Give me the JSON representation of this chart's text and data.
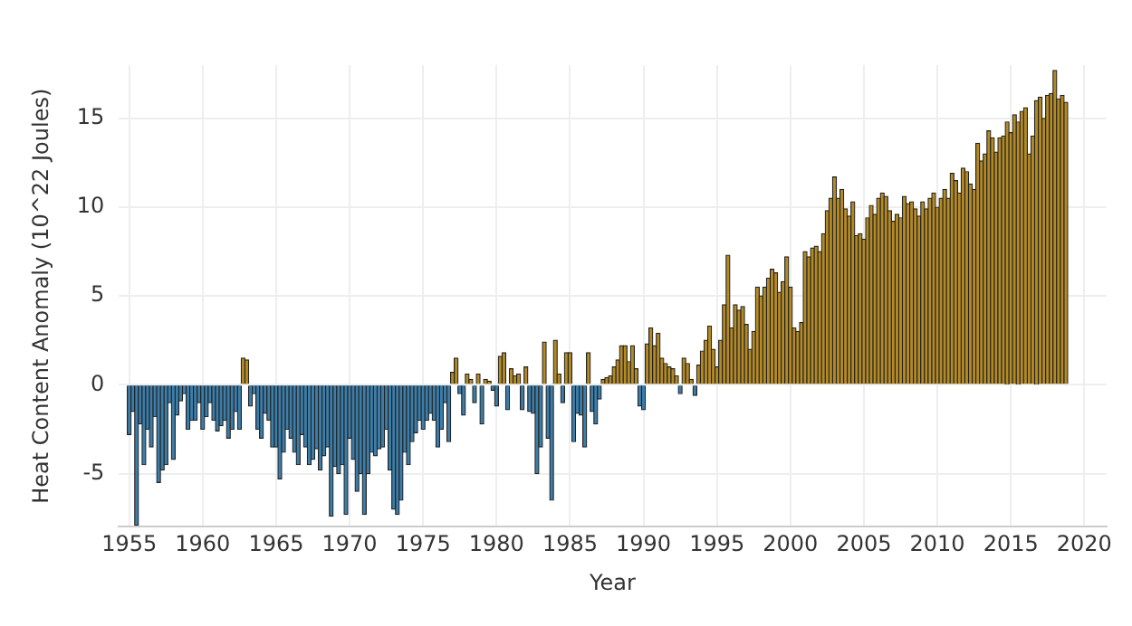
{
  "chart_data": {
    "type": "bar",
    "xlabel": "Year",
    "ylabel": "Heat Content Anomaly (10^22 Joules)",
    "xlim": [
      1954.3,
      2021.5
    ],
    "ylim": [
      -8,
      18
    ],
    "xticks": [
      1955,
      1960,
      1965,
      1970,
      1975,
      1980,
      1985,
      1990,
      1995,
      2000,
      2005,
      2010,
      2015,
      2020
    ],
    "yticks": [
      -5,
      0,
      5,
      10,
      15
    ],
    "grid": true,
    "legend": false,
    "x": [
      1955,
      1955.25,
      1955.5,
      1955.75,
      1956,
      1956.25,
      1956.5,
      1956.75,
      1957,
      1957.25,
      1957.5,
      1957.75,
      1958,
      1958.25,
      1958.5,
      1958.75,
      1959,
      1959.25,
      1959.5,
      1959.75,
      1960,
      1960.25,
      1960.5,
      1960.75,
      1961,
      1961.25,
      1961.5,
      1961.75,
      1962,
      1962.25,
      1962.5,
      1962.75,
      1963,
      1963.25,
      1963.5,
      1963.75,
      1964,
      1964.25,
      1964.5,
      1964.75,
      1965,
      1965.25,
      1965.5,
      1965.75,
      1966,
      1966.25,
      1966.5,
      1966.75,
      1967,
      1967.25,
      1967.5,
      1967.75,
      1968,
      1968.25,
      1968.5,
      1968.75,
      1969,
      1969.25,
      1969.5,
      1969.75,
      1970,
      1970.25,
      1970.5,
      1970.75,
      1971,
      1971.25,
      1971.5,
      1971.75,
      1972,
      1972.25,
      1972.5,
      1972.75,
      1973,
      1973.25,
      1973.5,
      1973.75,
      1974,
      1974.25,
      1974.5,
      1974.75,
      1975,
      1975.25,
      1975.5,
      1975.75,
      1976,
      1976.25,
      1976.5,
      1976.75,
      1977,
      1977.25,
      1977.5,
      1977.75,
      1978,
      1978.25,
      1978.5,
      1978.75,
      1979,
      1979.25,
      1979.5,
      1979.75,
      1980,
      1980.25,
      1980.5,
      1980.75,
      1981,
      1981.25,
      1981.5,
      1981.75,
      1982,
      1982.25,
      1982.5,
      1982.75,
      1983,
      1983.25,
      1983.5,
      1983.75,
      1984,
      1984.25,
      1984.5,
      1984.75,
      1985,
      1985.25,
      1985.5,
      1985.75,
      1986,
      1986.25,
      1986.5,
      1986.75,
      1987,
      1987.25,
      1987.5,
      1987.75,
      1988,
      1988.25,
      1988.5,
      1988.75,
      1989,
      1989.25,
      1989.5,
      1989.75,
      1990,
      1990.25,
      1990.5,
      1990.75,
      1991,
      1991.25,
      1991.5,
      1991.75,
      1992,
      1992.25,
      1992.5,
      1992.75,
      1993,
      1993.25,
      1993.5,
      1993.75,
      1994,
      1994.25,
      1994.5,
      1994.75,
      1995,
      1995.25,
      1995.5,
      1995.75,
      1996,
      1996.25,
      1996.5,
      1996.75,
      1997,
      1997.25,
      1997.5,
      1997.75,
      1998,
      1998.25,
      1998.5,
      1998.75,
      1999,
      1999.25,
      1999.5,
      1999.75,
      2000,
      2000.25,
      2000.5,
      2000.75,
      2001,
      2001.25,
      2001.5,
      2001.75,
      2002,
      2002.25,
      2002.5,
      2002.75,
      2003,
      2003.25,
      2003.5,
      2003.75,
      2004,
      2004.25,
      2004.5,
      2004.75,
      2005,
      2005.25,
      2005.5,
      2005.75,
      2006,
      2006.25,
      2006.5,
      2006.75,
      2007,
      2007.25,
      2007.5,
      2007.75,
      2008,
      2008.25,
      2008.5,
      2008.75,
      2009,
      2009.25,
      2009.5,
      2009.75,
      2010,
      2010.25,
      2010.5,
      2010.75,
      2011,
      2011.25,
      2011.5,
      2011.75,
      2012,
      2012.25,
      2012.5,
      2012.75,
      2013,
      2013.25,
      2013.5,
      2013.75,
      2014,
      2014.25,
      2014.5,
      2014.75,
      2015,
      2015.25,
      2015.5,
      2015.75,
      2016,
      2016.25,
      2016.5,
      2016.75,
      2017,
      2017.25,
      2017.5,
      2017.75,
      2018,
      2018.25,
      2018.5,
      2018.75
    ],
    "values": [
      -2.8,
      -1.5,
      -7.9,
      -2.2,
      -4.5,
      -2.5,
      -3.5,
      -1.8,
      -5.5,
      -4.8,
      -4.5,
      -1.0,
      -4.2,
      -1.7,
      -0.9,
      -0.5,
      -2.5,
      -2.0,
      -2.0,
      -1.0,
      -2.5,
      -1.8,
      -1.0,
      -2.0,
      -2.6,
      -2.3,
      -2.0,
      -3.0,
      -2.5,
      -1.5,
      -2.5,
      1.5,
      1.4,
      -1.2,
      -0.5,
      -2.5,
      -3.0,
      -1.6,
      -2.0,
      -3.5,
      -3.5,
      -5.3,
      -3.8,
      -2.5,
      -3.0,
      -3.8,
      -4.5,
      -2.8,
      -3.5,
      -4.5,
      -4.2,
      -3.6,
      -4.8,
      -4.0,
      -3.5,
      -7.4,
      -4.6,
      -5.0,
      -4.5,
      -7.3,
      -3.0,
      -4.2,
      -6.0,
      -5.0,
      -7.3,
      -5.0,
      -3.8,
      -4.0,
      -3.6,
      -3.5,
      -2.5,
      -4.8,
      -7.0,
      -7.3,
      -6.5,
      -3.8,
      -4.5,
      -3.2,
      -2.7,
      -2.0,
      -2.5,
      -2.0,
      -1.6,
      -2.0,
      -3.5,
      -2.5,
      -1.0,
      -3.2,
      0.7,
      1.5,
      -0.5,
      -1.7,
      0.6,
      0.3,
      -1.0,
      0.6,
      -2.2,
      0.3,
      0.2,
      -0.3,
      -1.2,
      1.6,
      1.8,
      -1.4,
      0.9,
      0.5,
      0.6,
      -1.4,
      1.0,
      -1.5,
      -1.6,
      -5.0,
      -3.5,
      2.4,
      -3.0,
      -6.5,
      2.5,
      0.6,
      -1.0,
      1.8,
      1.8,
      -3.2,
      -1.6,
      -1.7,
      -3.5,
      1.8,
      -1.5,
      -2.2,
      -0.8,
      0.3,
      0.4,
      0.5,
      1.0,
      1.4,
      2.2,
      2.2,
      1.3,
      2.2,
      0.9,
      -1.2,
      -1.4,
      2.3,
      3.2,
      2.2,
      2.9,
      1.5,
      1.2,
      1.0,
      0.9,
      0.5,
      -0.5,
      1.5,
      1.2,
      0.3,
      -0.6,
      1.1,
      1.9,
      2.5,
      3.3,
      2.0,
      1.0,
      2.5,
      4.5,
      7.3,
      3.2,
      4.5,
      4.2,
      4.4,
      3.4,
      2.0,
      3.0,
      5.5,
      5.0,
      5.5,
      6.0,
      6.5,
      6.3,
      5.2,
      5.8,
      7.2,
      5.5,
      3.2,
      3.0,
      3.5,
      7.5,
      7.2,
      7.7,
      7.8,
      7.5,
      8.5,
      9.8,
      10.5,
      11.7,
      10.5,
      11.0,
      9.9,
      9.5,
      10.3,
      8.4,
      8.5,
      8.2,
      9.4,
      10.1,
      9.6,
      10.5,
      10.8,
      10.6,
      9.8,
      9.2,
      9.6,
      9.4,
      10.6,
      10.2,
      10.3,
      9.9,
      9.5,
      10.3,
      9.9,
      10.5,
      10.8,
      10.0,
      10.5,
      11.0,
      10.5,
      11.9,
      11.5,
      10.8,
      12.2,
      12.0,
      11.3,
      11.0,
      13.6,
      12.6,
      13.0,
      14.3,
      13.9,
      13.1,
      13.9,
      14.0,
      14.8,
      14.2,
      15.2,
      14.8,
      15.4,
      15.6,
      13.0,
      14.0,
      16.0,
      16.2,
      15.0,
      16.3,
      16.4,
      17.7,
      16.1,
      16.3,
      15.9
    ],
    "colors": [
      "#3d7ea9",
      "#3d7ea9",
      "#3d7ea9",
      "#3d7ea9",
      "#3d7ea9",
      "#3d7ea9",
      "#3d7ea9",
      "#3d7ea9",
      "#3d7ea9",
      "#3d7ea9",
      "#3d7ea9",
      "#3d7ea9",
      "#3d7ea9",
      "#3d7ea9",
      "#3d7ea9",
      "#3d7ea9",
      "#3d7ea9",
      "#3d7ea9",
      "#3d7ea9",
      "#3d7ea9",
      "#3d7ea9",
      "#3d7ea9",
      "#3d7ea9",
      "#3d7ea9",
      "#3d7ea9",
      "#3d7ea9",
      "#3d7ea9",
      "#3d7ea9",
      "#3d7ea9",
      "#3d7ea9",
      "#3d7ea9",
      "#b38a26",
      "#b38a26",
      "#3d7ea9",
      "#3d7ea9",
      "#3d7ea9",
      "#3d7ea9",
      "#3d7ea9",
      "#3d7ea9",
      "#3d7ea9",
      "#3d7ea9",
      "#3d7ea9",
      "#3d7ea9",
      "#3d7ea9",
      "#3d7ea9",
      "#3d7ea9",
      "#3d7ea9",
      "#3d7ea9",
      "#3d7ea9",
      "#3d7ea9",
      "#3d7ea9",
      "#3d7ea9",
      "#3d7ea9",
      "#3d7ea9",
      "#3d7ea9",
      "#3d7ea9",
      "#3d7ea9",
      "#3d7ea9",
      "#3d7ea9",
      "#3d7ea9",
      "#3d7ea9",
      "#3d7ea9",
      "#3d7ea9",
      "#3d7ea9",
      "#3d7ea9",
      "#3d7ea9",
      "#3d7ea9",
      "#3d7ea9",
      "#3d7ea9",
      "#3d7ea9",
      "#3d7ea9",
      "#3d7ea9",
      "#3d7ea9",
      "#3d7ea9",
      "#3d7ea9",
      "#3d7ea9",
      "#3d7ea9",
      "#3d7ea9",
      "#3d7ea9",
      "#3d7ea9",
      "#3d7ea9",
      "#3d7ea9",
      "#3d7ea9",
      "#3d7ea9",
      "#3d7ea9",
      "#3d7ea9",
      "#3d7ea9",
      "#3d7ea9",
      "#b38a26",
      "#b38a26",
      "#3d7ea9",
      "#3d7ea9",
      "#b38a26",
      "#b38a26",
      "#3d7ea9",
      "#b38a26",
      "#3d7ea9",
      "#b38a26",
      "#b38a26",
      "#3d7ea9",
      "#3d7ea9",
      "#b38a26",
      "#b38a26",
      "#3d7ea9",
      "#b38a26",
      "#b38a26",
      "#b38a26",
      "#3d7ea9",
      "#b38a26",
      "#3d7ea9",
      "#3d7ea9",
      "#3d7ea9",
      "#3d7ea9",
      "#b38a26",
      "#3d7ea9",
      "#3d7ea9",
      "#b38a26",
      "#b38a26",
      "#3d7ea9",
      "#b38a26",
      "#b38a26",
      "#3d7ea9",
      "#3d7ea9",
      "#3d7ea9",
      "#3d7ea9",
      "#b38a26",
      "#3d7ea9",
      "#3d7ea9",
      "#3d7ea9",
      "#b38a26",
      "#b38a26",
      "#b38a26",
      "#b38a26",
      "#b38a26",
      "#b38a26",
      "#b38a26",
      "#b38a26",
      "#b38a26",
      "#b38a26",
      "#3d7ea9",
      "#3d7ea9",
      "#b38a26",
      "#b38a26",
      "#b38a26",
      "#b38a26",
      "#b38a26",
      "#b38a26",
      "#b38a26",
      "#b38a26",
      "#b38a26",
      "#3d7ea9",
      "#b38a26",
      "#b38a26",
      "#b38a26",
      "#3d7ea9",
      "#b38a26",
      "#b38a26",
      "#b38a26",
      "#b38a26",
      "#b38a26",
      "#b38a26",
      "#b38a26",
      "#b38a26",
      "#b38a26",
      "#b38a26",
      "#b38a26",
      "#b38a26",
      "#b38a26",
      "#b38a26",
      "#b38a26",
      "#b38a26",
      "#b38a26",
      "#b38a26",
      "#b38a26",
      "#b38a26",
      "#b38a26",
      "#b38a26",
      "#b38a26",
      "#b38a26",
      "#b38a26",
      "#b38a26",
      "#b38a26",
      "#b38a26",
      "#b38a26",
      "#b38a26",
      "#b38a26",
      "#b38a26",
      "#b38a26",
      "#b38a26",
      "#b38a26",
      "#b38a26",
      "#b38a26",
      "#b38a26",
      "#b38a26",
      "#b38a26",
      "#b38a26",
      "#b38a26",
      "#b38a26",
      "#b38a26",
      "#b38a26",
      "#b38a26",
      "#b38a26",
      "#b38a26",
      "#b38a26",
      "#b38a26",
      "#b38a26",
      "#b38a26",
      "#b38a26",
      "#b38a26",
      "#b38a26",
      "#b38a26",
      "#b38a26",
      "#b38a26",
      "#b38a26",
      "#b38a26",
      "#b38a26",
      "#b38a26",
      "#b38a26",
      "#b38a26",
      "#b38a26",
      "#b38a26",
      "#b38a26",
      "#b38a26",
      "#b38a26",
      "#b38a26",
      "#b38a26",
      "#b38a26",
      "#b38a26",
      "#b38a26",
      "#b38a26",
      "#b38a26",
      "#b38a26",
      "#b38a26",
      "#b38a26",
      "#b38a26",
      "#b38a26",
      "#b38a26",
      "#b38a26",
      "#b38a26",
      "#b38a26",
      "#b38a26",
      "#b38a26",
      "#b38a26",
      "#b38a26",
      "#b38a26",
      "#b38a26",
      "#b38a26",
      "#b38a26",
      "#b38a26",
      "#b38a26",
      "#b38a26",
      "#b38a26",
      "#b38a26",
      "#b38a26",
      "#b38a26",
      "#b38a26"
    ]
  }
}
